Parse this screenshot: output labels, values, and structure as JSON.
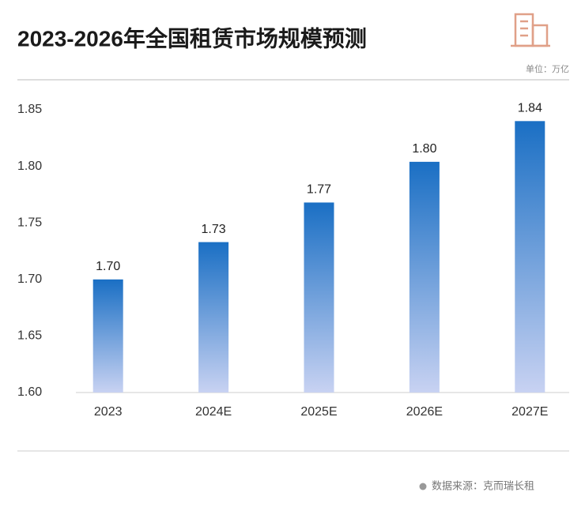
{
  "chart_data": {
    "type": "bar",
    "title": "2023-2026年全国租赁市场规模预测",
    "unit": "单位：万亿",
    "source": "数据来源：克而瑞长租",
    "categories": [
      "2023",
      "2024E",
      "2025E",
      "2026E",
      "2027E"
    ],
    "values": [
      1.7,
      1.733,
      1.768,
      1.804,
      1.84
    ],
    "value_labels": [
      "1.70",
      "1.73",
      "1.77",
      "1.80",
      "1.84"
    ],
    "color": "#1a6fc4",
    "ylim": [
      1.6,
      1.85
    ],
    "yticks": [
      {
        "value": 1.6,
        "label": "1.60"
      },
      1.65,
      {
        "value": 1.7,
        "label": "1.70"
      },
      1.75,
      {
        "value": 1.8,
        "label": "1.80"
      },
      1.85
    ]
  }
}
